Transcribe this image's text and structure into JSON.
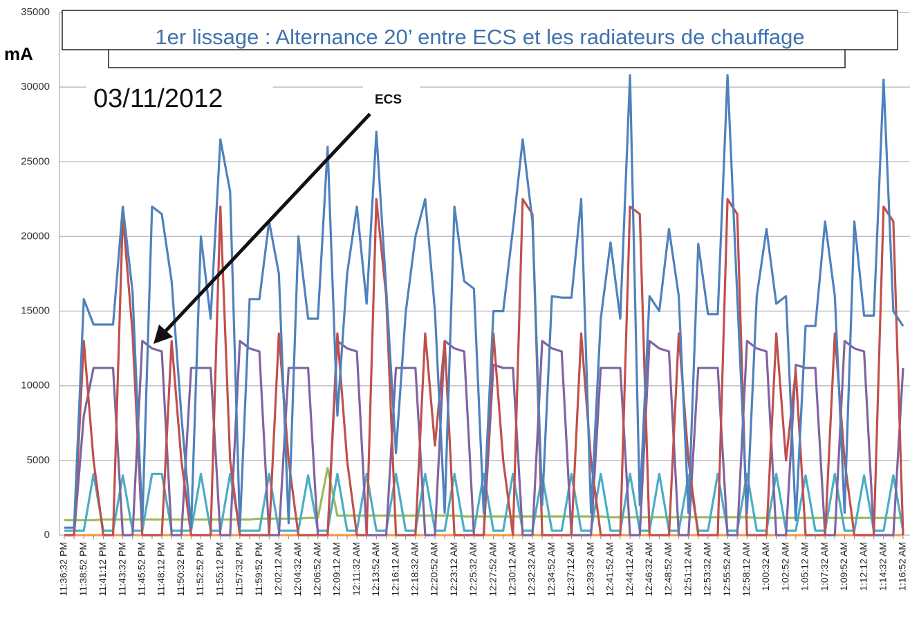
{
  "chart_data": {
    "type": "line",
    "title": "1er lissage : Alternance  20’ entre ECS et les radiateurs de chauffage",
    "y_label": "mA",
    "annotations": [
      "03/11/2012",
      "ECS"
    ],
    "ylim": [
      0,
      35000
    ],
    "yticks": [
      0,
      5000,
      10000,
      15000,
      20000,
      25000,
      30000,
      35000
    ],
    "grid": true,
    "categories": [
      "11:36:32 PM",
      null,
      "11:38:52 PM",
      null,
      "11:41:12 PM",
      null,
      "11:43:32 PM",
      null,
      "11:45:52 PM",
      null,
      "11:48:12 PM",
      null,
      "11:50:32 PM",
      null,
      "11:52:52 PM",
      null,
      "11:55:12 PM",
      null,
      "11:57:32 PM",
      null,
      "11:59:52 PM",
      null,
      "12:02:12 AM",
      null,
      "12:04:32 AM",
      null,
      "12:06:52 AM",
      null,
      "12:09:12 AM",
      null,
      "12:11:32 AM",
      null,
      "12:13:52 AM",
      null,
      "12:16:12 AM",
      null,
      "12:18:32 AM",
      null,
      "12:20:52 AM",
      null,
      "12:23:12 AM",
      null,
      "12:25:32 AM",
      null,
      "12:27:52 AM",
      null,
      "12:30:12 AM",
      null,
      "12:32:32 AM",
      null,
      "12:34:52 AM",
      null,
      "12:37:12 AM",
      null,
      "12:39:32 AM",
      null,
      "12:41:52 AM",
      null,
      "12:44:12 AM",
      null,
      "12:46:32 AM",
      null,
      "12:48:52 AM",
      null,
      "12:51:12 AM",
      null,
      "12:53:32 AM",
      null,
      "12:55:52 AM",
      null,
      "12:58:12 AM",
      null,
      "1:00:32 AM",
      null,
      "1:02:52 AM",
      null,
      "1:05:12 AM",
      null,
      "1:07:32 AM",
      null,
      "1:09:52 AM",
      null,
      "1:12:12 AM",
      null,
      "1:14:32 AM",
      null,
      "1:16:52 AM"
    ],
    "series": [
      {
        "color": "#f79646",
        "values": [
          0,
          0,
          0,
          0,
          0,
          0,
          0,
          0,
          0,
          0,
          0,
          0,
          0,
          0,
          0,
          0,
          0,
          0,
          0,
          0,
          0,
          0,
          0,
          0,
          0,
          0,
          0,
          0,
          0,
          0,
          0,
          0,
          0,
          0,
          0,
          0,
          0,
          0,
          0,
          0,
          0,
          0,
          0,
          0,
          0,
          0,
          0,
          0,
          0,
          0,
          0,
          0,
          0,
          0,
          0,
          0,
          0,
          0,
          0,
          0,
          0,
          0,
          0,
          0,
          0,
          0,
          0,
          0,
          0,
          0,
          0,
          0,
          0,
          0,
          0,
          0,
          0,
          0,
          0,
          0,
          0,
          0,
          0,
          0,
          0,
          0,
          0
        ]
      },
      {
        "color": "#9bbb59",
        "values": [
          1000,
          1000,
          1000,
          1000,
          1050,
          1050,
          1050,
          1050,
          1050,
          1050,
          1050,
          1050,
          1050,
          1050,
          1050,
          1050,
          1050,
          1050,
          1050,
          1050,
          1100,
          1100,
          1100,
          1100,
          1100,
          1150,
          1150,
          4500,
          1300,
          1300,
          1300,
          1300,
          1300,
          1300,
          1300,
          1300,
          1300,
          1300,
          1300,
          1300,
          1300,
          1250,
          1250,
          1250,
          1250,
          1250,
          1250,
          1250,
          1250,
          1250,
          1250,
          1250,
          1250,
          1250,
          1250,
          1250,
          1200,
          1200,
          1200,
          1200,
          1200,
          1200,
          1200,
          1200,
          1200,
          1200,
          1200,
          1200,
          1200,
          1200,
          1200,
          1150,
          1150,
          1150,
          1150,
          1150,
          1150,
          1150,
          1150,
          1150,
          1150,
          1150,
          1150,
          1150,
          1150,
          1150,
          1150
        ]
      },
      {
        "color": "#4bacc6",
        "values": [
          300,
          300,
          300,
          4100,
          300,
          300,
          4000,
          300,
          300,
          4100,
          4100,
          300,
          300,
          300,
          4100,
          300,
          300,
          4100,
          300,
          300,
          300,
          4100,
          300,
          300,
          300,
          4000,
          300,
          300,
          4100,
          300,
          300,
          4100,
          300,
          300,
          4100,
          300,
          300,
          4100,
          300,
          300,
          4100,
          300,
          300,
          4100,
          300,
          300,
          4100,
          300,
          300,
          4000,
          300,
          300,
          4100,
          300,
          300,
          4100,
          300,
          300,
          4100,
          300,
          300,
          4100,
          300,
          300,
          4000,
          300,
          300,
          4100,
          300,
          300,
          4100,
          300,
          300,
          4100,
          300,
          300,
          4000,
          300,
          300,
          4100,
          300,
          300,
          4000,
          300,
          300,
          4000,
          300
        ]
      },
      {
        "color": "#8064a2",
        "values": [
          0,
          0,
          8000,
          11200,
          11200,
          11200,
          0,
          0,
          13000,
          12500,
          12300,
          0,
          0,
          11200,
          11200,
          11200,
          0,
          0,
          13000,
          12500,
          12300,
          0,
          0,
          11200,
          11200,
          11200,
          0,
          0,
          13000,
          12500,
          12300,
          0,
          0,
          0,
          11200,
          11200,
          11200,
          0,
          0,
          13000,
          12500,
          12300,
          0,
          0,
          11400,
          11200,
          11200,
          0,
          0,
          13000,
          12500,
          12300,
          0,
          0,
          0,
          11200,
          11200,
          11200,
          0,
          0,
          13000,
          12500,
          12300,
          0,
          0,
          11200,
          11200,
          11200,
          0,
          0,
          13000,
          12500,
          12300,
          0,
          0,
          11400,
          11200,
          11200,
          0,
          0,
          13000,
          12500,
          12300,
          0,
          0,
          0,
          11200
        ]
      },
      {
        "color": "#c0504d",
        "values": [
          0,
          0,
          13000,
          5000,
          0,
          0,
          21500,
          13500,
          0,
          0,
          0,
          13000,
          5000,
          0,
          0,
          0,
          22000,
          5000,
          0,
          0,
          0,
          0,
          13500,
          5000,
          0,
          0,
          0,
          0,
          13500,
          5000,
          0,
          0,
          22500,
          16000,
          0,
          0,
          0,
          13500,
          6000,
          13000,
          0,
          0,
          0,
          0,
          13500,
          5000,
          0,
          22500,
          21500,
          0,
          0,
          0,
          0,
          13500,
          5000,
          0,
          0,
          0,
          22000,
          21500,
          0,
          0,
          0,
          13500,
          5000,
          0,
          0,
          0,
          22500,
          21500,
          0,
          0,
          0,
          13500,
          5000,
          11000,
          0,
          0,
          0,
          13500,
          5000,
          0,
          0,
          0,
          22000,
          21000,
          0
        ]
      },
      {
        "color": "#4f81bd",
        "values": [
          500,
          500,
          15800,
          14100,
          14100,
          14100,
          22000,
          16300,
          800,
          22000,
          21500,
          17000,
          8000,
          500,
          20000,
          14500,
          26500,
          23000,
          500,
          15800,
          15800,
          21000,
          17500,
          800,
          20000,
          14500,
          14500,
          26000,
          8000,
          17500,
          22000,
          15500,
          27000,
          16500,
          5500,
          14900,
          20000,
          22500,
          15000,
          1500,
          22000,
          17000,
          16500,
          1500,
          15000,
          15000,
          20500,
          26500,
          21000,
          2000,
          16000,
          15900,
          15900,
          22500,
          1500,
          14500,
          19600,
          14500,
          30800,
          2000,
          16000,
          15000,
          20500,
          16000,
          1500,
          19500,
          14800,
          14800,
          30800,
          16000,
          1500,
          16000,
          20500,
          15500,
          16000,
          1000,
          14000,
          14000,
          21000,
          16000,
          1500,
          21000,
          14700,
          14700,
          30500,
          15000,
          14000
        ]
      }
    ]
  }
}
